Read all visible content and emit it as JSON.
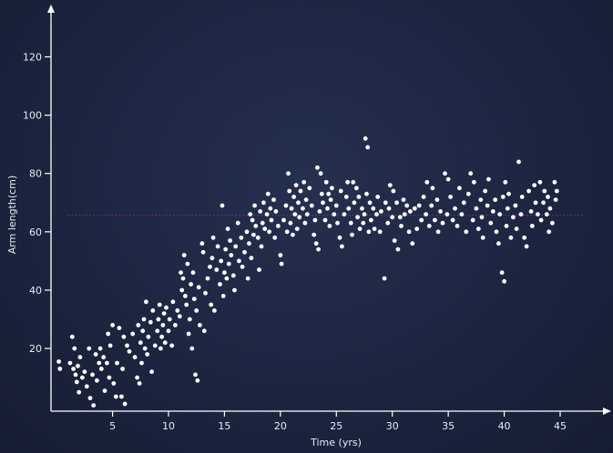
{
  "chart_data": {
    "type": "scatter",
    "xlabel": "Time (yrs)",
    "ylabel": "Arm length(cm)",
    "xlim": [
      -0.5,
      48.5
    ],
    "ylim": [
      -1.5,
      137
    ],
    "xticks": [
      5,
      10,
      15,
      20,
      25,
      30,
      35,
      40,
      45
    ],
    "yticks": [
      20,
      40,
      60,
      80,
      100,
      120
    ],
    "grid": false,
    "point_color": "#ffffff",
    "reference_line": {
      "y": 65.7,
      "x_range": [
        1.0,
        45.0
      ],
      "color": "#8a2a8a"
    },
    "points": [
      [
        0.2,
        15.5
      ],
      [
        0.3,
        13
      ],
      [
        1.2,
        15
      ],
      [
        1.4,
        24
      ],
      [
        1.5,
        13
      ],
      [
        1.6,
        20
      ],
      [
        1.7,
        11
      ],
      [
        1.8,
        8.5
      ],
      [
        1.9,
        14
      ],
      [
        2.0,
        5
      ],
      [
        2.1,
        17
      ],
      [
        2.3,
        10
      ],
      [
        2.5,
        12
      ],
      [
        2.7,
        7
      ],
      [
        2.9,
        20
      ],
      [
        3.0,
        3
      ],
      [
        3.2,
        11
      ],
      [
        3.3,
        0.5
      ],
      [
        3.5,
        18
      ],
      [
        3.6,
        9
      ],
      [
        3.8,
        15
      ],
      [
        3.9,
        20
      ],
      [
        4.0,
        13
      ],
      [
        4.2,
        17
      ],
      [
        4.3,
        5.5
      ],
      [
        4.5,
        15
      ],
      [
        4.6,
        25
      ],
      [
        4.7,
        10
      ],
      [
        4.8,
        21
      ],
      [
        5.0,
        28
      ],
      [
        5.1,
        8
      ],
      [
        5.3,
        3.5
      ],
      [
        5.4,
        15
      ],
      [
        5.6,
        27
      ],
      [
        5.8,
        3.5
      ],
      [
        5.9,
        13
      ],
      [
        6.0,
        24
      ],
      [
        6.1,
        1
      ],
      [
        6.3,
        21
      ],
      [
        6.5,
        19
      ],
      [
        6.8,
        25
      ],
      [
        7.0,
        17
      ],
      [
        7.2,
        10
      ],
      [
        7.3,
        28
      ],
      [
        7.4,
        8
      ],
      [
        7.5,
        22
      ],
      [
        7.6,
        15
      ],
      [
        7.7,
        26
      ],
      [
        7.8,
        30
      ],
      [
        7.9,
        20
      ],
      [
        8.0,
        36
      ],
      [
        8.1,
        18
      ],
      [
        8.2,
        24
      ],
      [
        8.4,
        29
      ],
      [
        8.5,
        12
      ],
      [
        8.6,
        33
      ],
      [
        8.8,
        21
      ],
      [
        9.0,
        26
      ],
      [
        9.1,
        30
      ],
      [
        9.2,
        35
      ],
      [
        9.3,
        20
      ],
      [
        9.4,
        24
      ],
      [
        9.5,
        28
      ],
      [
        9.6,
        32
      ],
      [
        9.7,
        22
      ],
      [
        9.8,
        34
      ],
      [
        10.0,
        26
      ],
      [
        10.1,
        30
      ],
      [
        10.3,
        21
      ],
      [
        10.4,
        36
      ],
      [
        10.6,
        28
      ],
      [
        10.8,
        33
      ],
      [
        11.0,
        31
      ],
      [
        11.1,
        46
      ],
      [
        11.2,
        40
      ],
      [
        11.3,
        44
      ],
      [
        11.4,
        52
      ],
      [
        11.5,
        38
      ],
      [
        11.6,
        35
      ],
      [
        11.7,
        49
      ],
      [
        11.8,
        25
      ],
      [
        11.9,
        30
      ],
      [
        12.0,
        42
      ],
      [
        12.1,
        20
      ],
      [
        12.2,
        46
      ],
      [
        12.3,
        37
      ],
      [
        12.4,
        11
      ],
      [
        12.5,
        33
      ],
      [
        12.6,
        9
      ],
      [
        12.7,
        41
      ],
      [
        12.8,
        28
      ],
      [
        13.0,
        56
      ],
      [
        13.1,
        53
      ],
      [
        13.2,
        26
      ],
      [
        13.3,
        39
      ],
      [
        13.5,
        44
      ],
      [
        13.7,
        48
      ],
      [
        13.8,
        35
      ],
      [
        13.9,
        51
      ],
      [
        14.0,
        58
      ],
      [
        14.1,
        33
      ],
      [
        14.3,
        47
      ],
      [
        14.4,
        55
      ],
      [
        14.6,
        42
      ],
      [
        14.7,
        50
      ],
      [
        14.8,
        69
      ],
      [
        14.9,
        38
      ],
      [
        15.0,
        46
      ],
      [
        15.1,
        54
      ],
      [
        15.2,
        44
      ],
      [
        15.3,
        61
      ],
      [
        15.4,
        49
      ],
      [
        15.5,
        57
      ],
      [
        15.6,
        52
      ],
      [
        15.8,
        45
      ],
      [
        15.9,
        40
      ],
      [
        16.0,
        55
      ],
      [
        16.2,
        63
      ],
      [
        16.3,
        50
      ],
      [
        16.5,
        58
      ],
      [
        16.6,
        48
      ],
      [
        16.8,
        53
      ],
      [
        17.0,
        60
      ],
      [
        17.1,
        44
      ],
      [
        17.2,
        56
      ],
      [
        17.3,
        66
      ],
      [
        17.4,
        51
      ],
      [
        17.5,
        64
      ],
      [
        17.6,
        59
      ],
      [
        17.7,
        69
      ],
      [
        17.8,
        62
      ],
      [
        18.0,
        58
      ],
      [
        18.1,
        47
      ],
      [
        18.2,
        67
      ],
      [
        18.3,
        55
      ],
      [
        18.4,
        63
      ],
      [
        18.5,
        70
      ],
      [
        18.6,
        61
      ],
      [
        18.8,
        66
      ],
      [
        18.9,
        73
      ],
      [
        19.0,
        60
      ],
      [
        19.1,
        68
      ],
      [
        19.2,
        64
      ],
      [
        19.4,
        71
      ],
      [
        19.5,
        58
      ],
      [
        19.6,
        67
      ],
      [
        19.8,
        62
      ],
      [
        20.0,
        52
      ],
      [
        20.1,
        49
      ],
      [
        20.3,
        64
      ],
      [
        20.5,
        69
      ],
      [
        20.6,
        60
      ],
      [
        20.7,
        80
      ],
      [
        20.8,
        74
      ],
      [
        20.9,
        63
      ],
      [
        21.0,
        68
      ],
      [
        21.1,
        59
      ],
      [
        21.2,
        72
      ],
      [
        21.3,
        66
      ],
      [
        21.4,
        76
      ],
      [
        21.5,
        61
      ],
      [
        21.6,
        70
      ],
      [
        21.7,
        65
      ],
      [
        21.8,
        74
      ],
      [
        22.0,
        68
      ],
      [
        22.1,
        77
      ],
      [
        22.2,
        63
      ],
      [
        22.3,
        71
      ],
      [
        22.4,
        66
      ],
      [
        22.6,
        75
      ],
      [
        22.8,
        69
      ],
      [
        23.0,
        59
      ],
      [
        23.1,
        64
      ],
      [
        23.2,
        56
      ],
      [
        23.3,
        82
      ],
      [
        23.4,
        54
      ],
      [
        23.5,
        67
      ],
      [
        23.6,
        80
      ],
      [
        23.7,
        73
      ],
      [
        23.8,
        70
      ],
      [
        24.0,
        64
      ],
      [
        24.1,
        77
      ],
      [
        24.2,
        68
      ],
      [
        24.3,
        73
      ],
      [
        24.4,
        62
      ],
      [
        24.5,
        71
      ],
      [
        24.6,
        75
      ],
      [
        24.8,
        66
      ],
      [
        25.0,
        69
      ],
      [
        25.1,
        63
      ],
      [
        25.3,
        58
      ],
      [
        25.4,
        74
      ],
      [
        25.5,
        55
      ],
      [
        25.7,
        66
      ],
      [
        25.9,
        72
      ],
      [
        26.0,
        77
      ],
      [
        26.1,
        68
      ],
      [
        26.3,
        63
      ],
      [
        26.4,
        59
      ],
      [
        26.5,
        77
      ],
      [
        26.6,
        70
      ],
      [
        26.8,
        75
      ],
      [
        26.9,
        65
      ],
      [
        27.0,
        72
      ],
      [
        27.1,
        61
      ],
      [
        27.3,
        68
      ],
      [
        27.4,
        63
      ],
      [
        27.5,
        66
      ],
      [
        27.6,
        92
      ],
      [
        27.7,
        73
      ],
      [
        27.8,
        89
      ],
      [
        27.9,
        60
      ],
      [
        28.0,
        70
      ],
      [
        28.1,
        64
      ],
      [
        28.3,
        68
      ],
      [
        28.4,
        61
      ],
      [
        28.6,
        66
      ],
      [
        28.7,
        72
      ],
      [
        28.9,
        60
      ],
      [
        29.0,
        67
      ],
      [
        29.3,
        44
      ],
      [
        29.4,
        70
      ],
      [
        29.6,
        63
      ],
      [
        29.7,
        68
      ],
      [
        29.8,
        76
      ],
      [
        30.0,
        65
      ],
      [
        30.1,
        74
      ],
      [
        30.2,
        57
      ],
      [
        30.4,
        70
      ],
      [
        30.5,
        54
      ],
      [
        30.7,
        65
      ],
      [
        30.8,
        62
      ],
      [
        31.0,
        71
      ],
      [
        31.1,
        66
      ],
      [
        31.3,
        69
      ],
      [
        31.5,
        60
      ],
      [
        31.6,
        67
      ],
      [
        31.8,
        56
      ],
      [
        32.0,
        68
      ],
      [
        32.2,
        61
      ],
      [
        32.4,
        69
      ],
      [
        32.6,
        64
      ],
      [
        32.8,
        72
      ],
      [
        33.0,
        66
      ],
      [
        33.1,
        77
      ],
      [
        33.3,
        62
      ],
      [
        33.5,
        69
      ],
      [
        33.6,
        75
      ],
      [
        33.8,
        64
      ],
      [
        34.0,
        71
      ],
      [
        34.1,
        60
      ],
      [
        34.3,
        67
      ],
      [
        34.5,
        63
      ],
      [
        34.7,
        80
      ],
      [
        34.9,
        66
      ],
      [
        35.0,
        78
      ],
      [
        35.2,
        72
      ],
      [
        35.4,
        64
      ],
      [
        35.6,
        68
      ],
      [
        35.8,
        62
      ],
      [
        36.0,
        75
      ],
      [
        36.2,
        66
      ],
      [
        36.4,
        70
      ],
      [
        36.6,
        60
      ],
      [
        36.8,
        73
      ],
      [
        37.0,
        80
      ],
      [
        37.2,
        64
      ],
      [
        37.3,
        77
      ],
      [
        37.5,
        68
      ],
      [
        37.7,
        61
      ],
      [
        37.9,
        71
      ],
      [
        38.0,
        65
      ],
      [
        38.1,
        58
      ],
      [
        38.3,
        74
      ],
      [
        38.5,
        69
      ],
      [
        38.6,
        78
      ],
      [
        38.8,
        63
      ],
      [
        39.0,
        67
      ],
      [
        39.2,
        71
      ],
      [
        39.3,
        60
      ],
      [
        39.5,
        56
      ],
      [
        39.6,
        66
      ],
      [
        39.8,
        46
      ],
      [
        39.9,
        72
      ],
      [
        40.0,
        43
      ],
      [
        40.1,
        77
      ],
      [
        40.2,
        62
      ],
      [
        40.3,
        68
      ],
      [
        40.4,
        73
      ],
      [
        40.6,
        58
      ],
      [
        40.8,
        65
      ],
      [
        41.0,
        69
      ],
      [
        41.1,
        61
      ],
      [
        41.3,
        84
      ],
      [
        41.5,
        66
      ],
      [
        41.6,
        72
      ],
      [
        41.8,
        58
      ],
      [
        42.0,
        55
      ],
      [
        42.2,
        74
      ],
      [
        42.4,
        67
      ],
      [
        42.5,
        62
      ],
      [
        42.7,
        76
      ],
      [
        42.8,
        70
      ],
      [
        43.0,
        66
      ],
      [
        43.2,
        77
      ],
      [
        43.3,
        64
      ],
      [
        43.5,
        70
      ],
      [
        43.6,
        74
      ],
      [
        43.8,
        66
      ],
      [
        43.9,
        72
      ],
      [
        44.0,
        60
      ],
      [
        44.1,
        68
      ],
      [
        44.3,
        63
      ],
      [
        44.5,
        77
      ],
      [
        44.6,
        71
      ],
      [
        44.7,
        74
      ]
    ]
  }
}
